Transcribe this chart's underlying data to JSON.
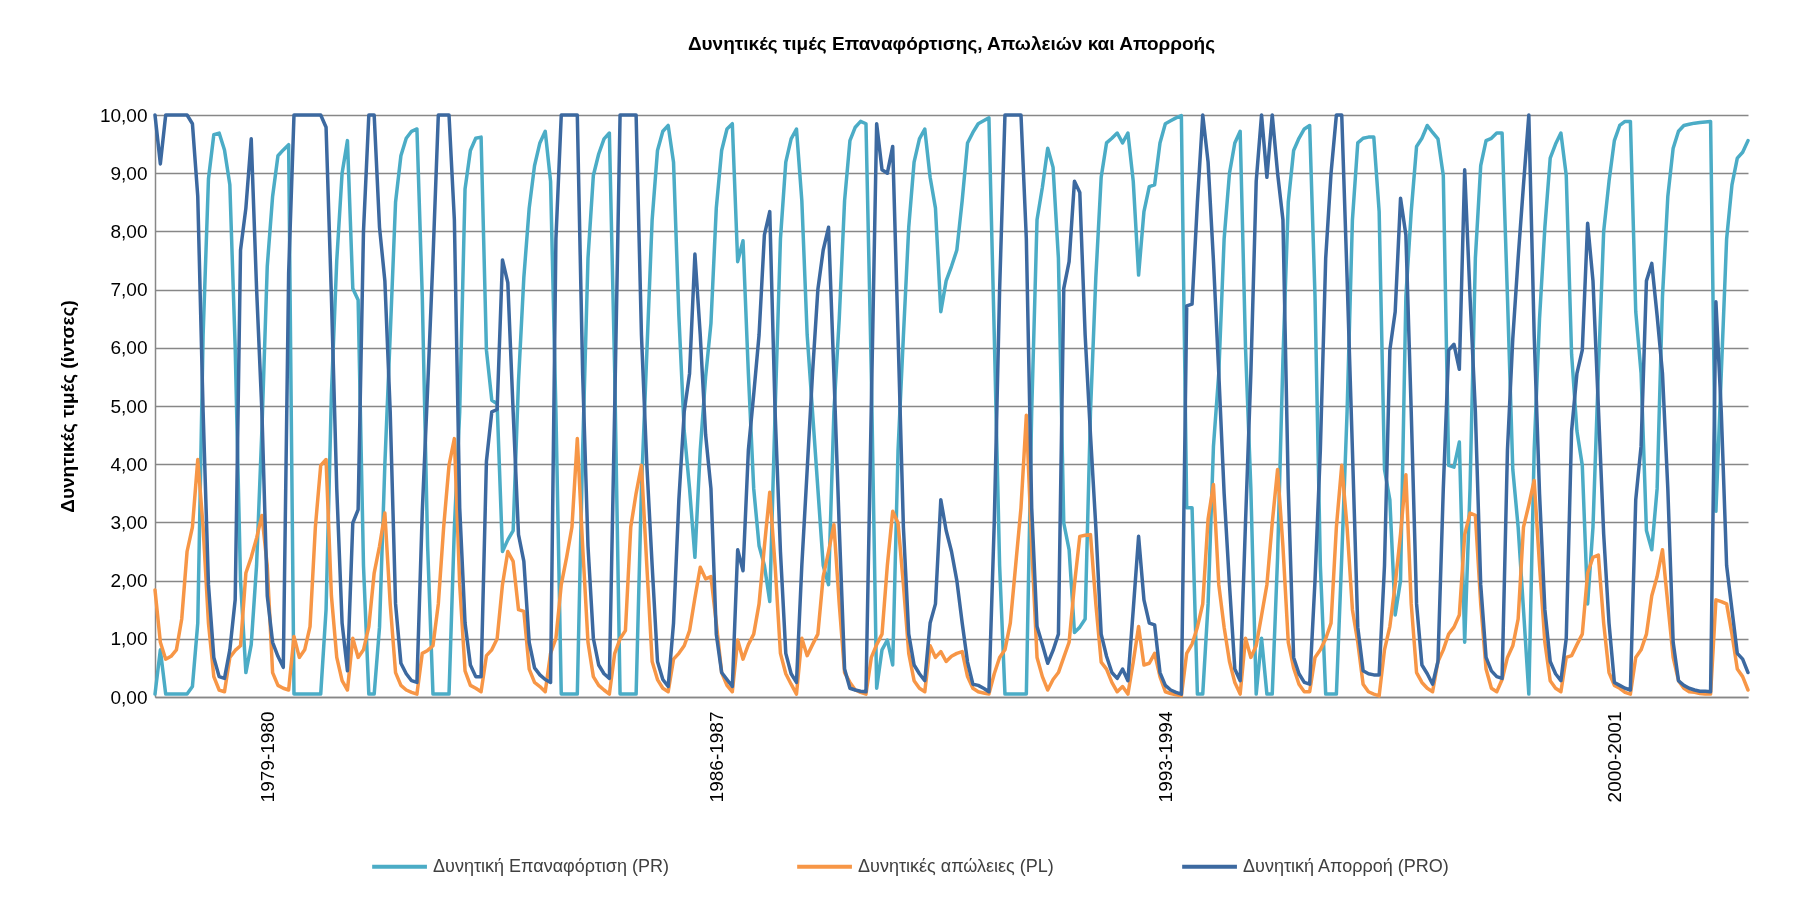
{
  "chart_data": {
    "type": "line",
    "title": "Δυνητικές τιμές Επαναφόρτισης, Απωλειών και Απορροής",
    "ylabel": "Δυνητικές τιμές (ίντσες)",
    "categories": [
      null,
      null,
      null,
      null,
      null,
      null,
      null,
      null,
      null,
      null,
      null,
      null,
      null,
      null,
      null,
      null,
      null,
      null,
      null,
      null,
      null,
      "1979-1980",
      null,
      null,
      null,
      null,
      null,
      null,
      null,
      null,
      null,
      null,
      null,
      null,
      null,
      null,
      null,
      null,
      null,
      null,
      null,
      null,
      null,
      null,
      null,
      null,
      null,
      null,
      null,
      null,
      null,
      null,
      null,
      null,
      null,
      null,
      null,
      null,
      null,
      null,
      null,
      null,
      null,
      null,
      null,
      null,
      null,
      null,
      null,
      null,
      null,
      null,
      null,
      null,
      null,
      null,
      null,
      null,
      null,
      null,
      null,
      null,
      null,
      null,
      null,
      null,
      null,
      null,
      null,
      null,
      null,
      null,
      null,
      null,
      null,
      null,
      null,
      null,
      null,
      null,
      null,
      null,
      null,
      null,
      null,
      "1986-1987",
      null,
      null,
      null,
      null,
      null,
      null,
      null,
      null,
      null,
      null,
      null,
      null,
      null,
      null,
      null,
      null,
      null,
      null,
      null,
      null,
      null,
      null,
      null,
      null,
      null,
      null,
      null,
      null,
      null,
      null,
      null,
      null,
      null,
      null,
      null,
      null,
      null,
      null,
      null,
      null,
      null,
      null,
      null,
      null,
      null,
      null,
      null,
      null,
      null,
      null,
      null,
      null,
      null,
      null,
      null,
      null,
      null,
      null,
      null,
      null,
      null,
      null,
      null,
      null,
      null,
      null,
      null,
      null,
      null,
      null,
      null,
      null,
      null,
      null,
      null,
      null,
      null,
      null,
      null,
      null,
      null,
      null,
      null,
      "1993-1994",
      null,
      null,
      null,
      null,
      null,
      null,
      null,
      null,
      null,
      null,
      null,
      null,
      null,
      null,
      null,
      null,
      null,
      null,
      null,
      null,
      null,
      null,
      null,
      null,
      null,
      null,
      null,
      null,
      null,
      null,
      null,
      null,
      null,
      null,
      null,
      null,
      null,
      null,
      null,
      null,
      null,
      null,
      null,
      null,
      null,
      null,
      null,
      null,
      null,
      null,
      null,
      null,
      null,
      null,
      null,
      null,
      null,
      null,
      null,
      null,
      null,
      null,
      null,
      null,
      null,
      null,
      null,
      null,
      null,
      null,
      null,
      null,
      null,
      null,
      null,
      null,
      null,
      null,
      null,
      null,
      null,
      null,
      null,
      "2000-2001",
      null,
      null,
      null,
      null,
      null,
      null,
      null,
      null,
      null,
      null,
      null,
      null,
      null,
      null,
      null,
      null,
      null,
      null,
      null,
      null,
      null,
      null,
      null,
      null,
      null
    ],
    "ylim": [
      0,
      10
    ],
    "yticks": [
      {
        "value": 0,
        "label": "0,00"
      },
      {
        "value": 1,
        "label": "1,00"
      },
      {
        "value": 2,
        "label": "2,00"
      },
      {
        "value": 3,
        "label": "3,00"
      },
      {
        "value": 4,
        "label": "4,00"
      },
      {
        "value": 5,
        "label": "5,00"
      },
      {
        "value": 6,
        "label": "6,00"
      },
      {
        "value": 7,
        "label": "7,00"
      },
      {
        "value": 8,
        "label": "8,00"
      },
      {
        "value": 9,
        "label": "9,00"
      },
      {
        "value": 10,
        "label": "10,00"
      }
    ],
    "grid": "y",
    "legend": "bottom",
    "series": [
      {
        "name": "Δυνητική Επαναφόρτιση (PR)",
        "color": "#4bacc6",
        "values": [
          0.05,
          0.81,
          0.05,
          0.05,
          0.05,
          0.05,
          0.05,
          0.18,
          1.27,
          6.22,
          8.9,
          9.66,
          9.69,
          9.4,
          8.8,
          6.0,
          2.0,
          0.42,
          0.9,
          2.26,
          4.6,
          7.4,
          8.6,
          9.3,
          9.4,
          9.49,
          0.05,
          0.05,
          0.05,
          0.05,
          0.05,
          0.05,
          1.5,
          5.2,
          7.5,
          9.0,
          9.56,
          7.02,
          6.82,
          2.26,
          0.05,
          0.05,
          1.2,
          4.0,
          6.22,
          8.5,
          9.3,
          9.6,
          9.72,
          9.76,
          6.88,
          2.59,
          0.05,
          0.05,
          0.05,
          0.05,
          2.9,
          4.9,
          8.73,
          9.39,
          9.6,
          9.62,
          5.96,
          5.1,
          5.04,
          2.5,
          2.7,
          2.86,
          5.43,
          7.21,
          8.4,
          9.13,
          9.52,
          9.72,
          8.86,
          4.9,
          0.05,
          0.05,
          0.05,
          0.05,
          4.24,
          7.54,
          8.96,
          9.33,
          9.59,
          9.69,
          5.56,
          0.05,
          0.05,
          0.05,
          0.05,
          3.58,
          5.9,
          8.2,
          9.39,
          9.72,
          9.82,
          9.19,
          6.55,
          4.57,
          3.58,
          2.4,
          4.24,
          5.5,
          6.42,
          8.4,
          9.39,
          9.76,
          9.85,
          7.48,
          7.84,
          5.56,
          3.58,
          2.6,
          2.26,
          1.64,
          4.9,
          7.87,
          9.19,
          9.59,
          9.76,
          8.53,
          6.22,
          4.9,
          3.58,
          2.26,
          1.93,
          4.9,
          6.5,
          8.53,
          9.56,
          9.79,
          9.89,
          9.85,
          5.56,
          0.15,
          0.81,
          0.98,
          0.55,
          4.24,
          6.2,
          8.07,
          9.19,
          9.59,
          9.76,
          8.93,
          8.4,
          6.62,
          7.15,
          7.4,
          7.68,
          8.53,
          9.52,
          9.7,
          9.85,
          9.9,
          9.95,
          6.22,
          2.26,
          0.05,
          0.05,
          0.05,
          0.05,
          0.05,
          4.9,
          8.2,
          8.76,
          9.43,
          9.1,
          7.54,
          2.99,
          2.53,
          1.11,
          1.2,
          1.34,
          4.9,
          7.21,
          8.93,
          9.52,
          9.6,
          9.69,
          9.52,
          9.69,
          8.86,
          7.25,
          8.34,
          8.77,
          8.8,
          9.52,
          9.85,
          9.9,
          9.95,
          9.99,
          3.25,
          3.25,
          0.05,
          0.05,
          1.6,
          4.3,
          5.56,
          7.87,
          9.0,
          9.52,
          9.72,
          6.0,
          3.58,
          0.05,
          1.01,
          0.05,
          0.05,
          2.4,
          5.8,
          8.5,
          9.39,
          9.6,
          9.76,
          9.82,
          6.88,
          2.26,
          0.05,
          0.05,
          0.05,
          2.4,
          4.9,
          8.2,
          9.52,
          9.6,
          9.62,
          9.62,
          8.34,
          3.91,
          3.39,
          1.41,
          2.0,
          6.88,
          8.34,
          9.46,
          9.6,
          9.82,
          9.7,
          9.59,
          8.96,
          3.98,
          3.95,
          4.38,
          0.94,
          3.58,
          7.54,
          9.13,
          9.56,
          9.6,
          9.69,
          9.69,
          6.88,
          3.91,
          2.92,
          1.5,
          0.05,
          4.24,
          6.5,
          8.07,
          9.26,
          9.5,
          9.69,
          8.96,
          5.89,
          4.57,
          3.98,
          1.6,
          2.92,
          5.56,
          8.0,
          8.86,
          9.56,
          9.82,
          9.89,
          9.89,
          6.62,
          5.56,
          2.86,
          2.53,
          3.58,
          6.88,
          8.6,
          9.43,
          9.72,
          9.82,
          9.84,
          9.86,
          9.87,
          9.88,
          9.89,
          3.19,
          5.56,
          7.87,
          8.8,
          9.26,
          9.36,
          9.56
        ]
      },
      {
        "name": "Δυνητικές απώλειες (PL)",
        "color": "#f79646",
        "values": [
          1.84,
          0.94,
          0.65,
          0.7,
          0.81,
          1.34,
          2.5,
          2.92,
          4.08,
          2.92,
          1.27,
          0.35,
          0.12,
          0.09,
          0.68,
          0.8,
          0.88,
          2.13,
          2.4,
          2.73,
          3.12,
          2.25,
          0.42,
          0.2,
          0.15,
          0.12,
          1.04,
          0.68,
          0.81,
          1.21,
          2.92,
          3.98,
          4.08,
          1.74,
          0.68,
          0.28,
          0.12,
          1.01,
          0.68,
          0.81,
          1.21,
          2.13,
          2.59,
          3.16,
          1.6,
          0.42,
          0.2,
          0.12,
          0.08,
          0.05,
          0.75,
          0.8,
          0.88,
          1.6,
          2.92,
          3.98,
          4.44,
          1.93,
          0.45,
          0.2,
          0.15,
          0.09,
          0.71,
          0.81,
          1.0,
          1.93,
          2.5,
          2.33,
          1.5,
          1.47,
          0.48,
          0.25,
          0.18,
          0.09,
          0.75,
          1.01,
          1.93,
          2.4,
          2.92,
          4.44,
          2.59,
          0.94,
          0.35,
          0.2,
          0.12,
          0.05,
          0.75,
          1.0,
          1.14,
          2.92,
          3.5,
          3.98,
          2.26,
          0.61,
          0.3,
          0.15,
          0.09,
          0.65,
          0.75,
          0.88,
          1.14,
          1.7,
          2.23,
          2.03,
          2.07,
          1.27,
          0.42,
          0.2,
          0.09,
          0.98,
          0.65,
          0.9,
          1.08,
          1.6,
          2.59,
          3.52,
          2.26,
          0.75,
          0.4,
          0.22,
          0.05,
          1.01,
          0.71,
          0.9,
          1.08,
          2.07,
          2.5,
          2.96,
          1.6,
          0.42,
          0.25,
          0.12,
          0.08,
          0.05,
          0.68,
          0.9,
          1.08,
          2.26,
          3.19,
          2.99,
          1.93,
          0.75,
          0.28,
          0.15,
          0.09,
          0.88,
          0.68,
          0.78,
          0.61,
          0.7,
          0.75,
          0.78,
          0.35,
          0.15,
          0.09,
          0.07,
          0.05,
          0.4,
          0.68,
          0.81,
          1.27,
          2.26,
          3.25,
          4.84,
          2.59,
          0.68,
          0.35,
          0.12,
          0.3,
          0.42,
          0.68,
          0.94,
          1.93,
          2.76,
          2.78,
          2.79,
          1.6,
          0.6,
          0.48,
          0.25,
          0.09,
          0.18,
          0.05,
          0.6,
          1.21,
          0.55,
          0.58,
          0.75,
          0.35,
          0.09,
          0.06,
          0.04,
          0.02,
          0.75,
          0.91,
          1.2,
          1.6,
          3.06,
          3.65,
          1.93,
          1.2,
          0.61,
          0.25,
          0.05,
          1.01,
          0.68,
          0.88,
          1.4,
          1.93,
          2.99,
          3.91,
          2.59,
          0.94,
          0.5,
          0.22,
          0.09,
          0.09,
          0.68,
          0.81,
          1.0,
          1.27,
          2.92,
          3.98,
          2.92,
          1.5,
          0.94,
          0.22,
          0.09,
          0.05,
          0.02,
          0.81,
          1.21,
          1.93,
          2.8,
          3.82,
          1.6,
          0.42,
          0.25,
          0.15,
          0.09,
          0.61,
          0.81,
          1.08,
          1.2,
          1.41,
          2.79,
          3.16,
          3.12,
          1.6,
          0.48,
          0.15,
          0.09,
          0.3,
          0.68,
          0.88,
          1.34,
          2.92,
          3.3,
          3.72,
          2.26,
          0.94,
          0.28,
          0.15,
          0.09,
          0.68,
          0.71,
          0.9,
          1.08,
          2.13,
          2.4,
          2.44,
          1.27,
          0.42,
          0.2,
          0.15,
          0.08,
          0.05,
          0.68,
          0.81,
          1.08,
          1.74,
          2.07,
          2.53,
          1.6,
          0.68,
          0.28,
          0.15,
          0.09,
          0.08,
          0.06,
          0.05,
          0.05,
          1.67,
          1.64,
          1.6,
          1.08,
          0.48,
          0.35,
          0.12
        ]
      },
      {
        "name": "Δυνητική Απορροή (PRO)",
        "color": "#3c69a0",
        "values": [
          10,
          9.16,
          10,
          10,
          10,
          10,
          10,
          9.85,
          8.6,
          4.9,
          1.93,
          0.68,
          0.35,
          0.32,
          0.81,
          1.67,
          7.68,
          8.4,
          9.59,
          7.02,
          4.9,
          1.74,
          0.94,
          0.7,
          0.51,
          7.28,
          10,
          10,
          10,
          10,
          10,
          10,
          9.79,
          6.88,
          3.58,
          1.27,
          0.45,
          2.99,
          3.22,
          8,
          10,
          10,
          8.07,
          7.15,
          4.9,
          1.6,
          0.58,
          0.4,
          0.28,
          0.25,
          3.19,
          5.3,
          7.54,
          10,
          10,
          10,
          8.2,
          3.25,
          1.27,
          0.55,
          0.35,
          0.35,
          4.05,
          4.9,
          4.94,
          7.51,
          7.12,
          4.9,
          2.79,
          2.33,
          0.94,
          0.5,
          0.38,
          0.3,
          0.25,
          7.87,
          10,
          10,
          10,
          10,
          5.56,
          2.59,
          1.01,
          0.55,
          0.4,
          0.32,
          5,
          10,
          10,
          10,
          10,
          6.22,
          4.0,
          2.26,
          0.61,
          0.3,
          0.18,
          1.27,
          3.39,
          4.9,
          5.56,
          7.61,
          6.22,
          4.51,
          3.58,
          1.08,
          0.42,
          0.3,
          0.18,
          2.53,
          2.17,
          4.24,
          5.2,
          6.22,
          7.94,
          8.34,
          4.9,
          2.5,
          0.75,
          0.4,
          0.25,
          2.26,
          3.9,
          5.56,
          7.0,
          7.68,
          8.07,
          5.56,
          2.92,
          0.48,
          0.15,
          0.12,
          0.1,
          0.09,
          5.0,
          9.85,
          9.06,
          9.0,
          9.46,
          6.22,
          2.92,
          1.08,
          0.55,
          0.4,
          0.28,
          1.27,
          1.6,
          3.39,
          2.86,
          2.5,
          2.0,
          1.27,
          0.6,
          0.22,
          0.2,
          0.15,
          0.09,
          3.0,
          7.0,
          10,
          10,
          10,
          10,
          7.87,
          3.25,
          1.21,
          0.9,
          0.58,
          0.8,
          1.08,
          7.02,
          7.48,
          8.86,
          8.67,
          6.22,
          4.5,
          2.92,
          1.08,
          0.7,
          0.42,
          0.32,
          0.48,
          0.28,
          1.5,
          2.76,
          1.67,
          1.27,
          1.24,
          0.42,
          0.2,
          0.12,
          0.08,
          0.05,
          6.72,
          6.75,
          8.5,
          10,
          9.19,
          7.5,
          5.56,
          3.5,
          1.93,
          0.48,
          0.28,
          3.0,
          5.56,
          8.86,
          10,
          8.93,
          10,
          9,
          8.2,
          3.58,
          0.68,
          0.4,
          0.25,
          0.22,
          2.0,
          4.24,
          7.54,
          9.0,
          10,
          10,
          7.21,
          4.24,
          1.2,
          0.45,
          0.4,
          0.38,
          0.38,
          2.26,
          5.96,
          6.62,
          8.57,
          7.94,
          4.9,
          1.6,
          0.55,
          0.4,
          0.22,
          0.61,
          3.58,
          5.96,
          6.06,
          5.63,
          9.06,
          6.88,
          4.9,
          1.93,
          0.68,
          0.45,
          0.35,
          0.32,
          4.24,
          6.16,
          7.54,
          8.8,
          10,
          6.22,
          3.5,
          1.5,
          0.61,
          0.4,
          0.28,
          1.01,
          4.57,
          5.56,
          5.96,
          8.14,
          7.15,
          5.0,
          2.8,
          1.27,
          0.25,
          0.2,
          0.15,
          0.12,
          3.39,
          4.31,
          7.15,
          7.45,
          6.55,
          5.56,
          3.58,
          0.94,
          0.28,
          0.2,
          0.15,
          0.12,
          0.1,
          0.1,
          0.09,
          6.79,
          4.9,
          2.26,
          1.5,
          0.75,
          0.65,
          0.42
        ]
      }
    ]
  }
}
